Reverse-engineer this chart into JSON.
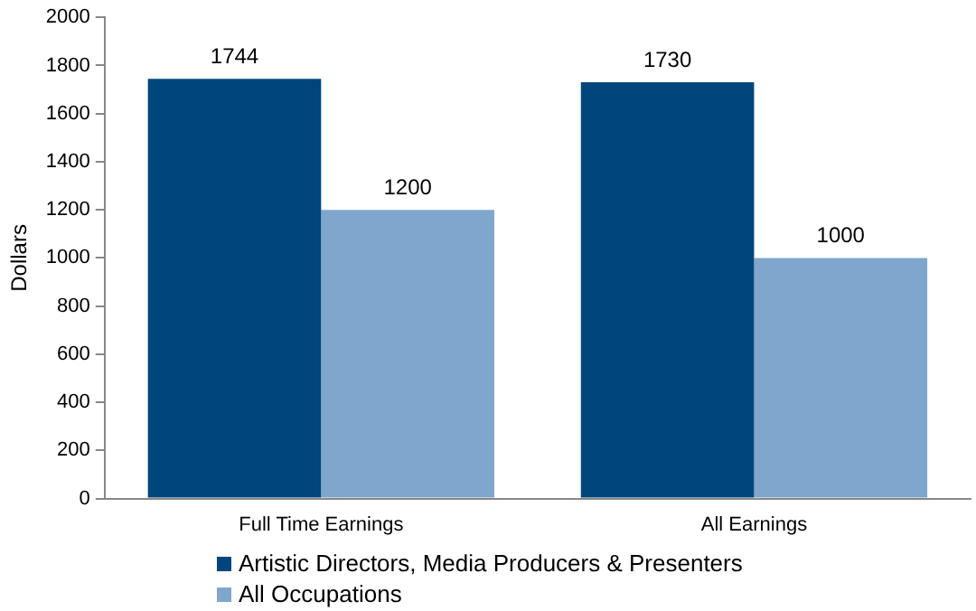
{
  "chart_data": {
    "type": "bar",
    "ylabel": "Dollars",
    "categories": [
      "Full Time Earnings",
      "All Earnings"
    ],
    "series": [
      {
        "name": "Artistic Directors, Media Producers & Presenters",
        "color": "#00457c",
        "values": [
          1744,
          1730
        ]
      },
      {
        "name": "All Occupations",
        "color": "#7fa6cc",
        "values": [
          1200,
          1000
        ]
      }
    ],
    "ylim": [
      0,
      2000
    ],
    "yticks": [
      0,
      200,
      400,
      600,
      800,
      1000,
      1200,
      1400,
      1600,
      1800,
      2000
    ],
    "grid": false,
    "legend": "bottom",
    "data_labels": true
  }
}
